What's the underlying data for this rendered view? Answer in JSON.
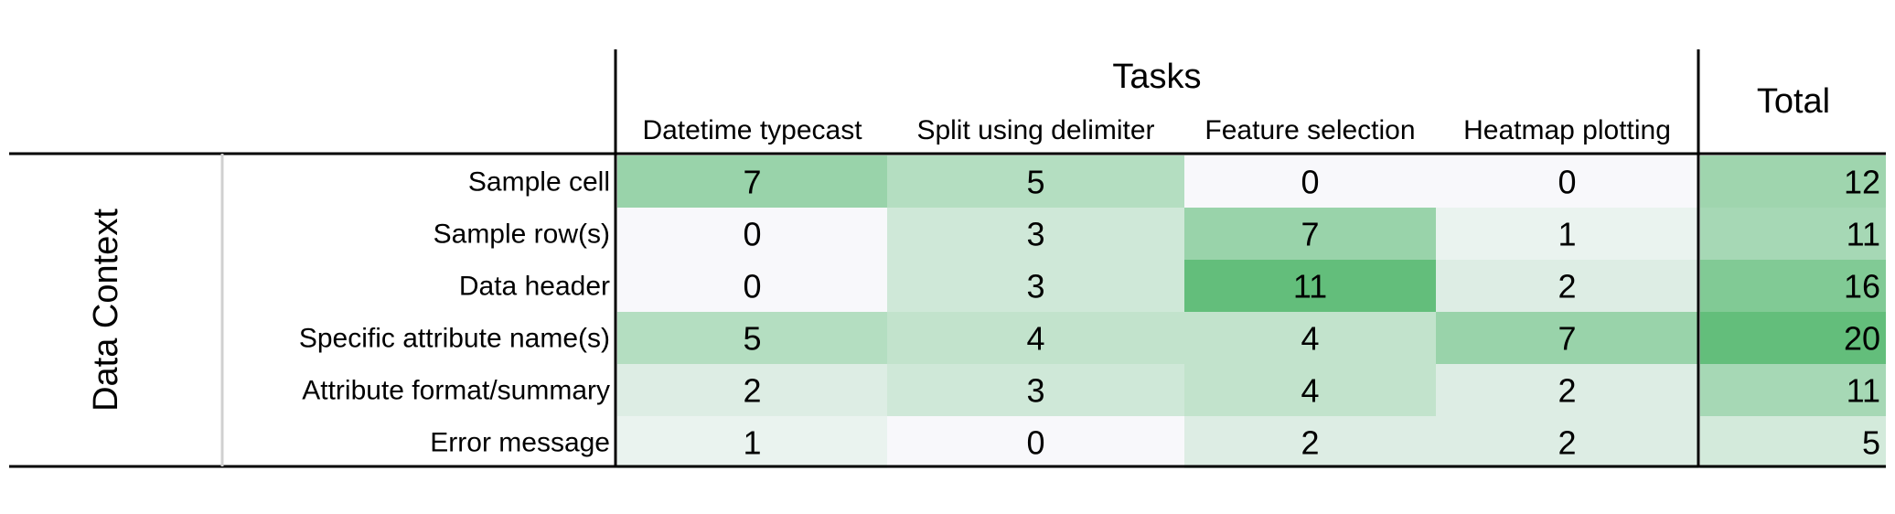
{
  "chart_data": {
    "type": "heatmap",
    "group_header": "Tasks",
    "total_header": "Total",
    "row_group_label": "Data Context",
    "columns": [
      "Datetime typecast",
      "Split using delimiter",
      "Feature selection",
      "Heatmap plotting"
    ],
    "rows": [
      "Sample cell",
      "Sample row(s)",
      "Data header",
      "Specific attribute name(s)",
      "Attribute format/summary",
      "Error message"
    ],
    "values": [
      [
        7,
        5,
        0,
        0
      ],
      [
        0,
        3,
        7,
        1
      ],
      [
        0,
        3,
        11,
        2
      ],
      [
        5,
        4,
        4,
        7
      ],
      [
        2,
        3,
        4,
        2
      ],
      [
        1,
        0,
        2,
        2
      ]
    ],
    "totals": [
      12,
      11,
      16,
      20,
      11,
      5
    ],
    "color_low": "#f8f8fb",
    "color_high": "#63be7b"
  }
}
